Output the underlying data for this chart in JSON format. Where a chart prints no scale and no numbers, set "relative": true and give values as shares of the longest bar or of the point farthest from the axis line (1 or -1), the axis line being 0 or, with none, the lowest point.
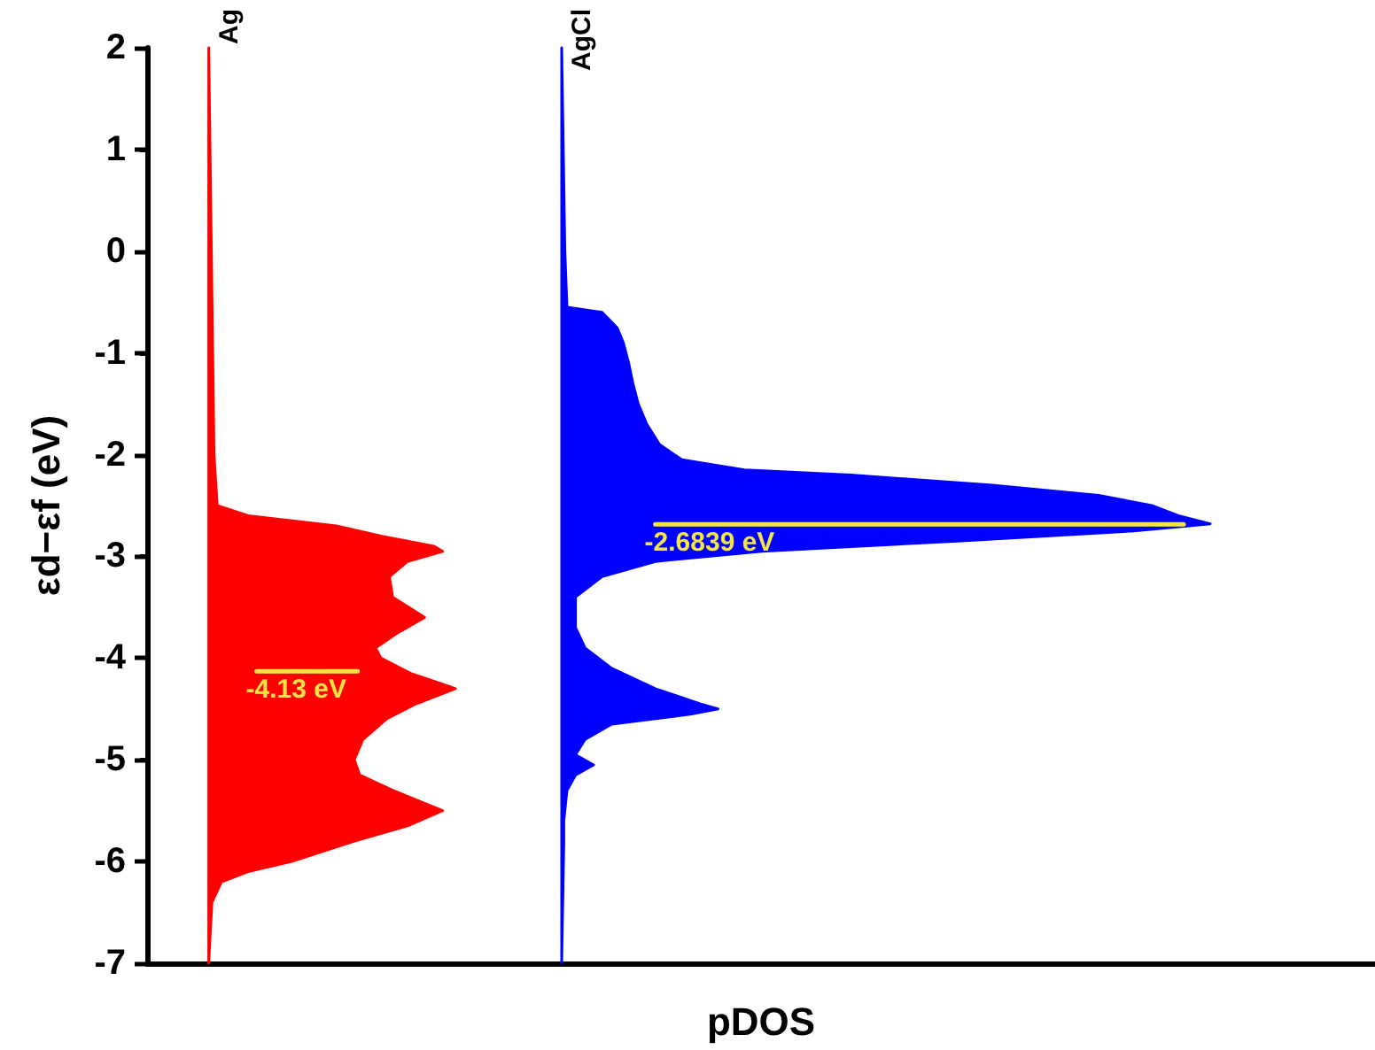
{
  "chart_data": {
    "type": "area",
    "orientation": "horizontal",
    "relative": true,
    "xlabel": "pDOS",
    "ylabel": "εd−εf (eV)",
    "ylim": [
      -7,
      2
    ],
    "yticks": [
      -7,
      -6,
      -5,
      -4,
      -3,
      -2,
      -1,
      0,
      1,
      2
    ],
    "legend": false,
    "grid": false,
    "series": [
      {
        "name": "Ag",
        "color": "#ff0000",
        "x": [
          2,
          -2,
          -2.5,
          -2.6,
          -2.7,
          -2.8,
          -2.9,
          -2.95,
          -3.05,
          -3.2,
          -3.4,
          -3.6,
          -3.75,
          -3.9,
          -4.0,
          -4.15,
          -4.3,
          -4.45,
          -4.6,
          -4.8,
          -5.0,
          -5.15,
          -5.3,
          -5.5,
          -5.65,
          -5.8,
          -6.0,
          -6.1,
          -6.2,
          -6.4,
          -7
        ],
        "values": [
          0.058,
          0.063,
          0.066,
          0.095,
          0.178,
          0.22,
          0.27,
          0.278,
          0.245,
          0.228,
          0.231,
          0.261,
          0.236,
          0.215,
          0.22,
          0.248,
          0.29,
          0.253,
          0.225,
          0.203,
          0.195,
          0.2,
          0.231,
          0.278,
          0.245,
          0.195,
          0.136,
          0.095,
          0.07,
          0.061,
          0.058
        ]
      },
      {
        "name": "AgCl",
        "color": "#0000ff",
        "x": [
          2,
          0,
          -0.55,
          -0.6,
          -0.75,
          -0.9,
          -1.1,
          -1.3,
          -1.5,
          -1.7,
          -1.9,
          -2.05,
          -2.15,
          -2.2,
          -2.3,
          -2.4,
          -2.5,
          -2.6,
          -2.68,
          -2.75,
          -2.85,
          -2.95,
          -3.05,
          -3.2,
          -3.4,
          -3.7,
          -3.9,
          -4.1,
          -4.3,
          -4.45,
          -4.5,
          -4.55,
          -4.65,
          -4.8,
          -4.95,
          -5.05,
          -5.15,
          -5.3,
          -5.6,
          -5.8,
          -7
        ],
        "values": [
          0.39,
          0.393,
          0.395,
          0.428,
          0.442,
          0.448,
          0.453,
          0.457,
          0.462,
          0.47,
          0.482,
          0.503,
          0.562,
          0.662,
          0.795,
          0.895,
          0.945,
          0.97,
          1.0,
          0.928,
          0.762,
          0.578,
          0.478,
          0.428,
          0.403,
          0.403,
          0.412,
          0.437,
          0.478,
          0.52,
          0.537,
          0.512,
          0.437,
          0.412,
          0.403,
          0.42,
          0.403,
          0.395,
          0.392,
          0.392,
          0.39
        ]
      },
      {
        "type": "line",
        "color": "#f5e642",
        "x": [
          -4.13,
          -4.13
        ],
        "values": [
          0.103,
          0.198
        ]
      },
      {
        "type": "line",
        "color": "#f5e642",
        "x": [
          -2.6839,
          -2.6839
        ],
        "values": [
          0.478,
          0.975
        ]
      }
    ],
    "annotations": [
      "-4.13 eV",
      "-2.6839 eV"
    ]
  }
}
